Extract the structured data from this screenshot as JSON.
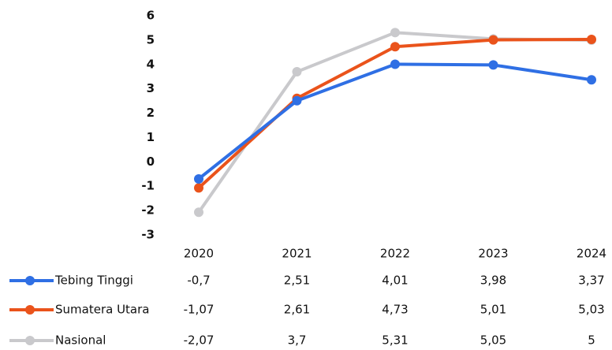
{
  "chart_data": {
    "type": "line",
    "categories": [
      "2020",
      "2021",
      "2022",
      "2023",
      "2024"
    ],
    "ylim": [
      -3,
      6
    ],
    "yticks": [
      6,
      5,
      4,
      3,
      2,
      1,
      0,
      -1,
      -2,
      -3
    ],
    "series": [
      {
        "name": "Tebing Tinggi",
        "color": "#2f6fe4",
        "values": [
          -0.7,
          2.51,
          4.01,
          3.98,
          3.37
        ],
        "value_labels": [
          "-0,7",
          "2,51",
          "4,01",
          "3,98",
          "3,37"
        ]
      },
      {
        "name": "Sumatera Utara",
        "color": "#ea531b",
        "values": [
          -1.07,
          2.61,
          4.73,
          5.01,
          5.03
        ],
        "value_labels": [
          "-1,07",
          "2,61",
          "4,73",
          "5,01",
          "5,03"
        ]
      },
      {
        "name": "Nasional",
        "color": "#c9c9cc",
        "values": [
          -2.07,
          3.7,
          5.31,
          5.05,
          5
        ],
        "value_labels": [
          "-2,07",
          "3,7",
          "5,31",
          "5,05",
          "5"
        ]
      }
    ]
  }
}
